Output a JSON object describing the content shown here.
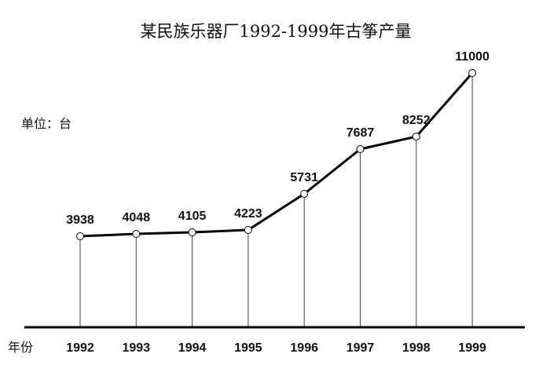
{
  "chart_data": {
    "type": "line",
    "title": "某民族乐器厂1992-1999年古筝产量",
    "unit_label": "单位：台",
    "xlabel": "年份",
    "ylabel": "",
    "categories": [
      "1992",
      "1993",
      "1994",
      "1995",
      "1996",
      "1997",
      "1998",
      "1999"
    ],
    "series": [
      {
        "name": "古筝产量",
        "values": [
          3938,
          4048,
          4105,
          4223,
          5731,
          7687,
          8252,
          11000
        ]
      }
    ],
    "data_labels": [
      "3938",
      "4048",
      "4105",
      "4223",
      "5731",
      "7687",
      "8252",
      "11000"
    ],
    "grid": false,
    "legend": "none",
    "markers": "hollow-circle",
    "drop_lines": true,
    "colors": {
      "line": "#000000",
      "marker_fill": "#ffffff",
      "drop_line": "#444444"
    }
  }
}
